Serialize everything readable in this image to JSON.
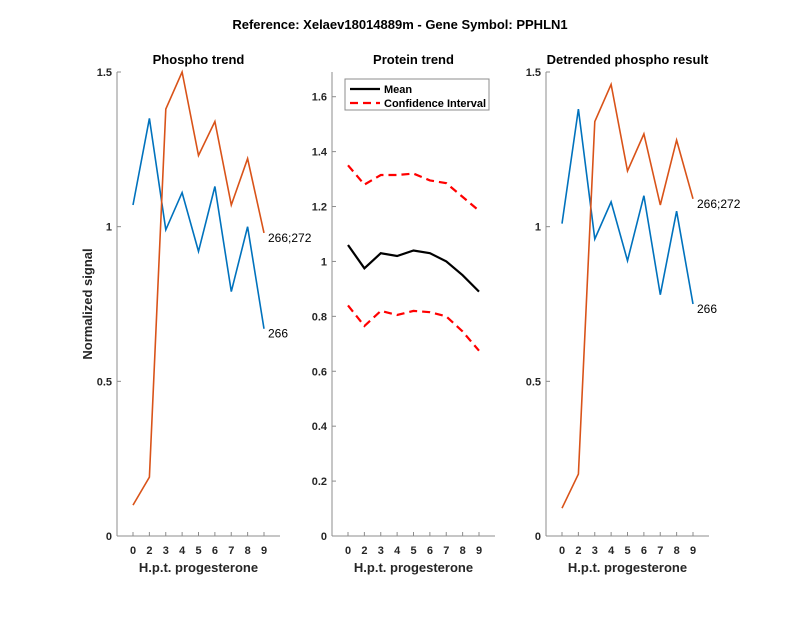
{
  "figure": {
    "suptitle": "Reference:  Xelaev18014889m - Gene Symbol:  PPHLN1"
  },
  "colors": {
    "blue": "#0072BD",
    "orange": "#D95319",
    "mean": "#000000",
    "ci": "#FF0000",
    "axis": "#8c8c8c"
  },
  "chart_data": [
    {
      "type": "line",
      "title": "Phospho trend",
      "xlabel": "H.p.t. progesterone",
      "ylabel": "Normalized signal",
      "x": [
        0,
        2,
        3,
        4,
        5,
        6,
        7,
        8,
        9
      ],
      "xtick_labels": [
        "0",
        "2",
        "3",
        "4",
        "5",
        "6",
        "7",
        "8",
        "9"
      ],
      "ylim": [
        0,
        1.5
      ],
      "yticks": [
        0,
        0.5,
        1,
        1.5
      ],
      "ytick_labels": [
        "0",
        "0.5",
        "1",
        "1.5"
      ],
      "series": [
        {
          "name": "266",
          "color": "#0072BD",
          "values": [
            1.07,
            1.35,
            0.99,
            1.11,
            0.92,
            1.13,
            0.79,
            1.0,
            0.67
          ]
        },
        {
          "name": "266;272",
          "color": "#D95319",
          "values": [
            0.1,
            0.19,
            1.38,
            1.5,
            1.23,
            1.34,
            1.07,
            1.22,
            0.98
          ]
        }
      ]
    },
    {
      "type": "line",
      "title": "Protein trend",
      "xlabel": "H.p.t. progesterone",
      "ylabel": "",
      "x": [
        0,
        2,
        3,
        4,
        5,
        6,
        7,
        8,
        9
      ],
      "xtick_labels": [
        "0",
        "2",
        "3",
        "4",
        "5",
        "6",
        "7",
        "8",
        "9"
      ],
      "ylim": [
        0,
        1.69
      ],
      "yticks": [
        0,
        0.2,
        0.4,
        0.6,
        0.8,
        1,
        1.2,
        1.4,
        1.6
      ],
      "ytick_labels": [
        "0",
        "0.2",
        "0.4",
        "0.6",
        "0.8",
        "1",
        "1.2",
        "1.4",
        "1.6"
      ],
      "legend": {
        "placement": "top",
        "entries": [
          "Mean",
          "Confidence Interval"
        ]
      },
      "series": [
        {
          "name": "Mean",
          "color": "#000000",
          "style": "solid",
          "values": [
            1.06,
            0.975,
            1.03,
            1.02,
            1.04,
            1.03,
            1.0,
            0.95,
            0.89
          ]
        },
        {
          "name": "Confidence Interval (upper)",
          "color": "#FF0000",
          "style": "dashed",
          "values": [
            1.35,
            1.28,
            1.315,
            1.315,
            1.32,
            1.295,
            1.285,
            1.235,
            1.185
          ]
        },
        {
          "name": "Confidence Interval (lower)",
          "color": "#FF0000",
          "style": "dashed",
          "values": [
            0.84,
            0.765,
            0.82,
            0.805,
            0.82,
            0.815,
            0.8,
            0.745,
            0.675
          ]
        }
      ]
    },
    {
      "type": "line",
      "title": "Detrended phospho result",
      "xlabel": "H.p.t. progesterone",
      "ylabel": "",
      "x": [
        0,
        2,
        3,
        4,
        5,
        6,
        7,
        8,
        9
      ],
      "xtick_labels": [
        "0",
        "2",
        "3",
        "4",
        "5",
        "6",
        "7",
        "8",
        "9"
      ],
      "ylim": [
        0,
        1.5
      ],
      "yticks": [
        0,
        0.5,
        1,
        1.5
      ],
      "ytick_labels": [
        "0",
        "0.5",
        "1",
        "1.5"
      ],
      "series": [
        {
          "name": "266",
          "color": "#0072BD",
          "values": [
            1.01,
            1.38,
            0.96,
            1.08,
            0.89,
            1.1,
            0.78,
            1.05,
            0.75
          ]
        },
        {
          "name": "266;272",
          "color": "#D95319",
          "values": [
            0.09,
            0.2,
            1.34,
            1.46,
            1.18,
            1.3,
            1.07,
            1.28,
            1.09
          ]
        }
      ]
    }
  ]
}
